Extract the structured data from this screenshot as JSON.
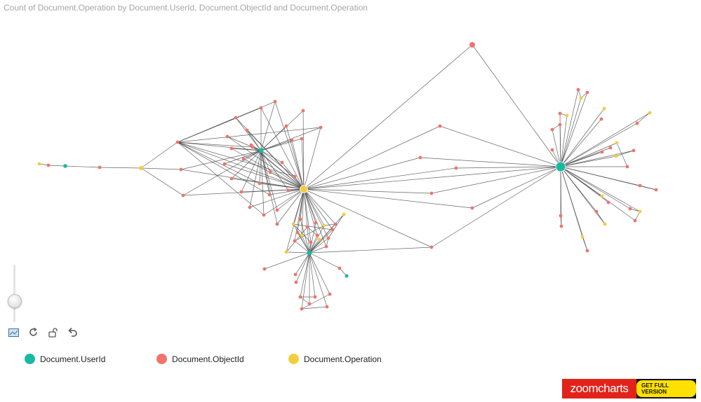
{
  "title": "Count of Document.Operation by Document.UserId, Document.ObjectId and Document.Operation",
  "colors": {
    "user": "#19b9a1",
    "object": "#f0736e",
    "operation": "#f2ce3c"
  },
  "legend": [
    {
      "label": "Document.UserId",
      "color": "#19b9a1"
    },
    {
      "label": "Document.ObjectId",
      "color": "#f0736e"
    },
    {
      "label": "Document.Operation",
      "color": "#f2ce3c"
    }
  ],
  "toolbar": {
    "icons": [
      "display-mode-icon",
      "refresh-icon",
      "unlock-icon",
      "back-icon"
    ]
  },
  "brand": {
    "logo": "zoomcharts",
    "cta": "GET FULL VERSION"
  }
}
